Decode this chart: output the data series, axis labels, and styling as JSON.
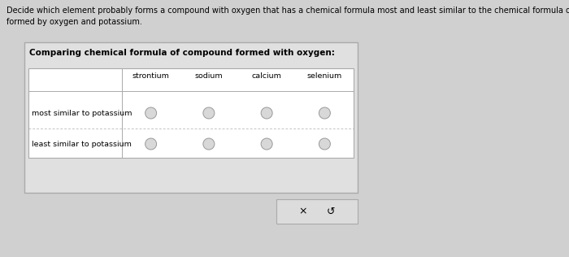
{
  "title_line1": "Decide which element probably forms a compound with oxygen that has a chemical formula most and least similar to the chemical formula of the compound",
  "title_line2": "formed by oxygen and potassium.",
  "table_title": "Comparing chemical formula of compound formed with oxygen:",
  "columns": [
    "strontium",
    "sodium",
    "calcium",
    "selenium"
  ],
  "rows": [
    "most similar to potassium",
    "least similar to potassium"
  ],
  "bg_color": "#d0d0d0",
  "outer_box_color": "#aaaaaa",
  "inner_box_facecolor": "#ffffff",
  "inner_box_edgecolor": "#aaaaaa",
  "title_fontsize": 7.0,
  "table_title_fontsize": 7.5,
  "col_header_fontsize": 6.8,
  "row_label_fontsize": 6.8,
  "radio_color": "#d8d8d8",
  "radio_edge_color": "#999999",
  "button_bg": "#dcdcdc",
  "button_border": "#aaaaaa",
  "x_label": "×",
  "undo_label": "↺"
}
